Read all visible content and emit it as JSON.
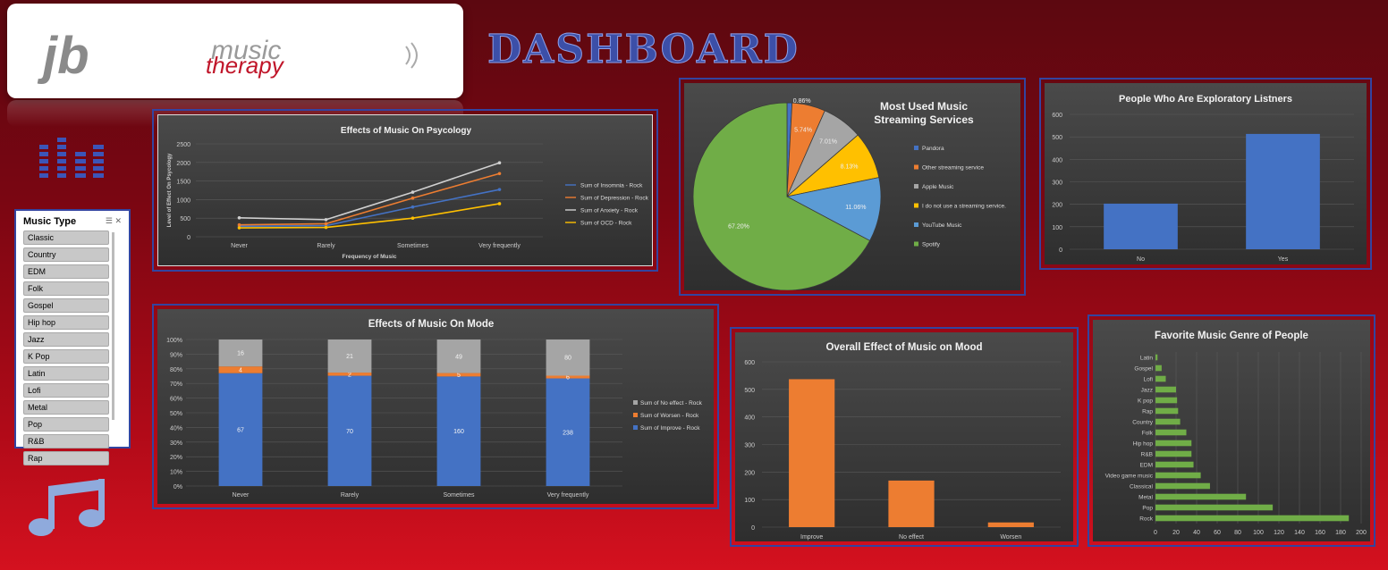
{
  "header": {
    "logo_initials": "jb",
    "logo_word1": "music",
    "logo_word2": "therapy",
    "title": "DASHBOARD"
  },
  "icons": {
    "equalizer": "equalizer-icon",
    "music_note": "music-note-icon"
  },
  "slicer": {
    "title": "Music Type",
    "items": [
      "Classic",
      "Country",
      "EDM",
      "Folk",
      "Gospel",
      "Hip hop",
      "Jazz",
      "K Pop",
      "Latin",
      "Lofi",
      "Metal",
      "Pop",
      "R&B",
      "Rap"
    ]
  },
  "colors": {
    "blue": "#4472c4",
    "orange": "#ed7d31",
    "gray": "#a5a5a5",
    "yellow": "#ffc000",
    "lightblue": "#5b9bd5",
    "green": "#70ad47",
    "panel_border": "#3344a0"
  },
  "chart_data": [
    {
      "id": "psychology",
      "type": "line",
      "title": "Effects of Music On Psycology",
      "xlabel": "Frequency of Music",
      "ylabel": "Level of Effect On Psycology",
      "categories": [
        "Never",
        "Rarely",
        "Sometimes",
        "Very frequently"
      ],
      "ylim": [
        0,
        2500
      ],
      "yticks": [
        "0",
        "500",
        "1000",
        "1500",
        "2000",
        "2500"
      ],
      "legend_position": "right",
      "series": [
        {
          "name": "Sum of Insomnia - Rock",
          "color": "#4472c4",
          "values": [
            280,
            300,
            800,
            1270
          ]
        },
        {
          "name": "Sum of Depression - Rock",
          "color": "#ed7d31",
          "values": [
            320,
            350,
            1040,
            1700
          ]
        },
        {
          "name": "Sum of Anxiety - Rock",
          "color": "#d0d0d0",
          "values": [
            510,
            460,
            1200,
            1990
          ]
        },
        {
          "name": "Sum of OCD - Rock",
          "color": "#ffc000",
          "values": [
            240,
            250,
            500,
            890
          ]
        }
      ]
    },
    {
      "id": "streaming",
      "type": "pie",
      "title": "Most Used Music Streaming Services",
      "title_lines": [
        "Most Used Music",
        "Streaming Services"
      ],
      "legend_position": "right",
      "slices": [
        {
          "name": "Pandora",
          "value": 0.86,
          "label": "0.86%",
          "color": "#4472c4"
        },
        {
          "name": "Other streaming service",
          "value": 5.74,
          "label": "5.74%",
          "color": "#ed7d31"
        },
        {
          "name": "Apple Music",
          "value": 7.01,
          "label": "7.01%",
          "color": "#a5a5a5"
        },
        {
          "name": "I do not use a streaming service.",
          "value": 8.13,
          "label": "8.13%",
          "color": "#ffc000"
        },
        {
          "name": "YouTube Music",
          "value": 11.06,
          "label": "11.06%",
          "color": "#5b9bd5"
        },
        {
          "name": "Spotify",
          "value": 67.2,
          "label": "67.20%",
          "color": "#70ad47"
        }
      ]
    },
    {
      "id": "explorers",
      "type": "bar",
      "title": "People Who Are Exploratory Listners",
      "categories": [
        "No",
        "Yes"
      ],
      "values": [
        203,
        513
      ],
      "ylim": [
        0,
        600
      ],
      "yticks": [
        "0",
        "100",
        "200",
        "300",
        "400",
        "500",
        "600"
      ],
      "color": "#4472c4"
    },
    {
      "id": "mode",
      "type": "bar",
      "stacked": "percent",
      "title": "Effects of Music On Mode",
      "categories": [
        "Never",
        "Rarely",
        "Sometimes",
        "Very frequently"
      ],
      "yticks": [
        "0%",
        "10%",
        "20%",
        "30%",
        "40%",
        "50%",
        "60%",
        "70%",
        "80%",
        "90%",
        "100%"
      ],
      "legend_position": "right",
      "series": [
        {
          "name": "Sum of Improve - Rock",
          "color": "#4472c4",
          "values": [
            67,
            70,
            160,
            238
          ]
        },
        {
          "name": "Sum of Worsen - Rock",
          "color": "#ed7d31",
          "values": [
            4,
            2,
            5,
            6
          ]
        },
        {
          "name": "Sum of No effect - Rock",
          "color": "#a5a5a5",
          "values": [
            16,
            21,
            49,
            80
          ]
        }
      ]
    },
    {
      "id": "mood",
      "type": "bar",
      "title": "Overall Effect of Music on Mood",
      "categories": [
        "Improve",
        "No effect",
        "Worsen"
      ],
      "values": [
        537,
        169,
        17
      ],
      "ylim": [
        0,
        600
      ],
      "yticks": [
        "0",
        "100",
        "200",
        "300",
        "400",
        "500",
        "600"
      ],
      "color": "#ed7d31"
    },
    {
      "id": "genre",
      "type": "bar",
      "orientation": "horizontal",
      "title": "Favorite Music Genre of People",
      "categories": [
        "Latin",
        "Gospel",
        "Lofi",
        "Jazz",
        "K pop",
        "Rap",
        "Country",
        "Folk",
        "Hip hop",
        "R&B",
        "EDM",
        "Video game music",
        "Classical",
        "Metal",
        "Pop",
        "Rock"
      ],
      "values": [
        2,
        6,
        10,
        20,
        21,
        22,
        24,
        30,
        35,
        35,
        37,
        44,
        53,
        88,
        114,
        188
      ],
      "xlim": [
        0,
        200
      ],
      "xticks": [
        "0",
        "20",
        "40",
        "60",
        "80",
        "100",
        "120",
        "140",
        "160",
        "180",
        "200"
      ],
      "color": "#70ad47"
    }
  ]
}
